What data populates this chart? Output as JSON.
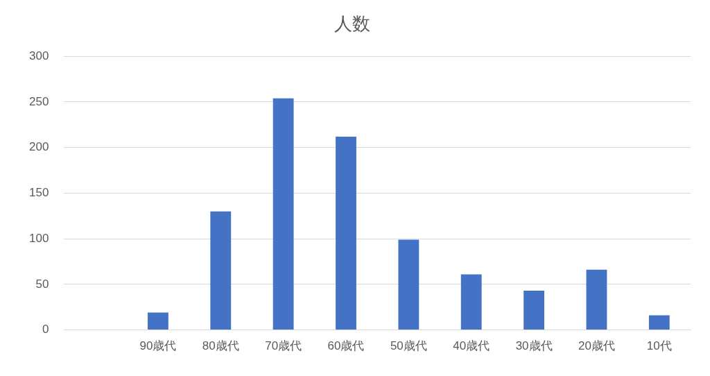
{
  "chart_data": {
    "type": "bar",
    "title": "人数",
    "categories": [
      null,
      "90歳代",
      "80歳代",
      "70歳代",
      "60歳代",
      "50歳代",
      "40歳代",
      "30歳代",
      "20歳代",
      "10代"
    ],
    "values": [
      null,
      19,
      130,
      254,
      212,
      99,
      61,
      43,
      66,
      16
    ],
    "color": "#4472c4",
    "ylim": [
      0,
      300
    ],
    "yticks": [
      0,
      50,
      100,
      150,
      200,
      250,
      300
    ],
    "grid": "y",
    "legend": false
  }
}
